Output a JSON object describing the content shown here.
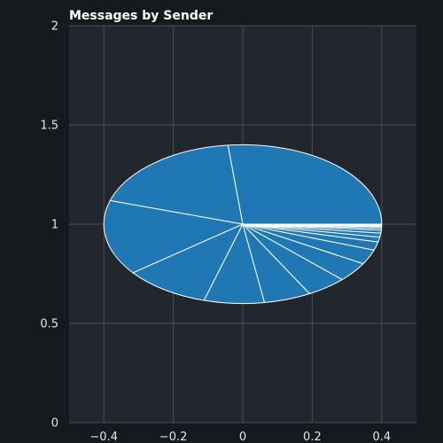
{
  "chart_data": {
    "type": "pie",
    "title": "Messages by Sender",
    "xlabel": "",
    "ylabel": "",
    "xlim": [
      -0.5,
      0.5
    ],
    "ylim": [
      0,
      2
    ],
    "x_ticks": [
      -0.4,
      -0.2,
      0,
      0.2,
      0.4
    ],
    "x_tick_labels": [
      "−0.4",
      "−0.2",
      "0",
      "0.2",
      "0.4"
    ],
    "y_ticks": [
      0,
      0.5,
      1,
      1.5,
      2
    ],
    "y_tick_labels": [
      "0",
      "0.5",
      "1",
      "1.5",
      "2"
    ],
    "grid": true,
    "center": [
      0,
      1
    ],
    "radius": 0.4,
    "start_angle_deg": 0,
    "direction": "counterclockwise",
    "values": [
      26.7,
      18.5,
      15.3,
      10.0,
      7.0,
      5.5,
      4.7,
      4.0,
      3.0,
      1.7,
      1.0,
      0.8,
      0.6,
      0.4,
      0.3,
      0.2,
      0.2,
      0.1
    ],
    "colors": {
      "background": "#16191d",
      "plot_area": "#22262d",
      "grid": "#4a4f57",
      "slice_fill": "#1f77b4",
      "slice_edge": "#ffffff"
    }
  }
}
